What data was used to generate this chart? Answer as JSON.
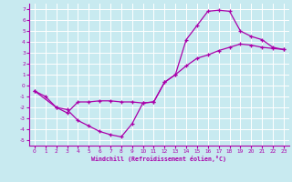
{
  "xlabel": "Windchill (Refroidissement éolien,°C)",
  "xlim": [
    -0.5,
    23.5
  ],
  "ylim": [
    -5.5,
    7.5
  ],
  "xticks": [
    0,
    1,
    2,
    3,
    4,
    5,
    6,
    7,
    8,
    9,
    10,
    11,
    12,
    13,
    14,
    15,
    16,
    17,
    18,
    19,
    20,
    21,
    22,
    23
  ],
  "yticks": [
    -5,
    -4,
    -3,
    -2,
    -1,
    0,
    1,
    2,
    3,
    4,
    5,
    6,
    7
  ],
  "bg_color": "#c8eaf0",
  "grid_color": "#ffffff",
  "line_color": "#aa00aa",
  "line1": [
    [
      0,
      -0.5
    ],
    [
      1,
      -1.0
    ],
    [
      2,
      -2.0
    ],
    [
      3,
      -2.2
    ],
    [
      4,
      -3.2
    ],
    [
      5,
      -3.7
    ],
    [
      6,
      -4.2
    ],
    [
      7,
      -4.5
    ],
    [
      8,
      -4.7
    ],
    [
      9,
      -3.5
    ],
    [
      10,
      -1.6
    ],
    [
      11,
      -1.5
    ],
    [
      12,
      0.3
    ],
    [
      13,
      1.0
    ],
    [
      14,
      4.2
    ],
    [
      15,
      5.5
    ],
    [
      16,
      6.8
    ],
    [
      17,
      6.9
    ],
    [
      18,
      6.8
    ],
    [
      19,
      5.0
    ],
    [
      20,
      4.5
    ],
    [
      21,
      4.2
    ],
    [
      22,
      3.5
    ],
    [
      23,
      3.3
    ]
  ],
  "line2": [
    [
      0,
      -0.5
    ],
    [
      2,
      -2.0
    ],
    [
      3,
      -2.5
    ],
    [
      4,
      -1.5
    ],
    [
      5,
      -1.5
    ],
    [
      6,
      -1.4
    ],
    [
      7,
      -1.4
    ],
    [
      8,
      -1.5
    ],
    [
      9,
      -1.5
    ],
    [
      10,
      -1.6
    ],
    [
      11,
      -1.5
    ],
    [
      12,
      0.3
    ],
    [
      13,
      1.0
    ],
    [
      14,
      1.8
    ],
    [
      15,
      2.5
    ],
    [
      16,
      2.8
    ],
    [
      17,
      3.2
    ],
    [
      18,
      3.5
    ],
    [
      19,
      3.8
    ],
    [
      20,
      3.7
    ],
    [
      21,
      3.5
    ],
    [
      22,
      3.4
    ],
    [
      23,
      3.3
    ]
  ],
  "line3": [
    [
      3,
      -2.2
    ],
    [
      3,
      -2.5
    ]
  ]
}
